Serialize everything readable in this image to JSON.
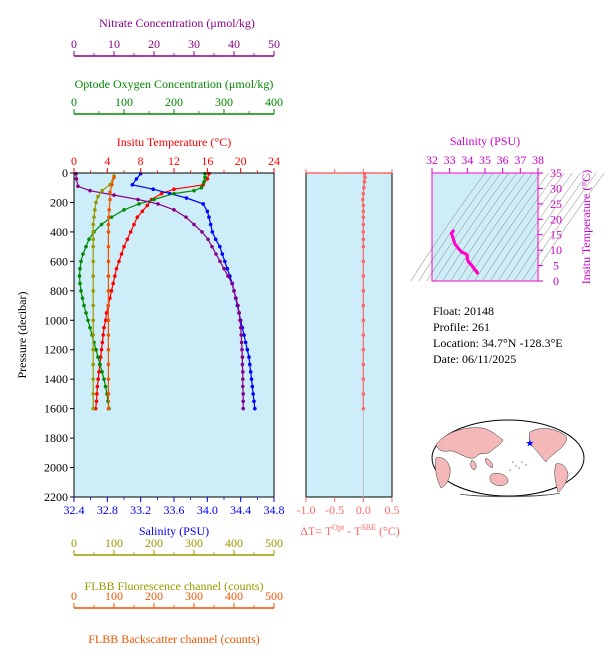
{
  "info": {
    "float": "Float:  20148",
    "profile": "Profile:  261",
    "location_prefix": "Location:  34.7",
    "location_mid": "N  -128.3",
    "location_suffix": "E",
    "date": "Date:  06/11/2025"
  },
  "chart_data": [
    {
      "id": "main-profile",
      "type": "line",
      "ylabel": "Pressure (decibar)",
      "ylim": [
        2200,
        0
      ],
      "yticks": [
        0,
        200,
        400,
        600,
        800,
        1000,
        1200,
        1400,
        1600,
        1800,
        2000,
        2200
      ],
      "axes": {
        "temperature": {
          "title": "Insitu Temperature (",
          "title_end": "C)",
          "lim": [
            0,
            24
          ],
          "ticks": [
            "0",
            "4",
            "8",
            "12",
            "16",
            "20",
            "24"
          ],
          "color": "#ff0000"
        },
        "salinity": {
          "title": "Salinity (PSU)",
          "lim": [
            32.4,
            34.8
          ],
          "ticks": [
            "32.4",
            "32.8",
            "33.2",
            "33.6",
            "34.0",
            "34.4",
            "34.8"
          ],
          "color": "#0000ff"
        },
        "oxygen": {
          "title": "Optode Oxygen Concentration (",
          "title_end": "mol/kg)",
          "lim": [
            0,
            400
          ],
          "ticks": [
            "0",
            "100",
            "200",
            "300",
            "400"
          ],
          "color": "#008800"
        },
        "nitrate": {
          "title": "Nitrate Concentration (",
          "title_end": "mol/kg)",
          "lim": [
            0,
            50
          ],
          "ticks": [
            "0",
            "10",
            "20",
            "30",
            "40",
            "50"
          ],
          "color": "#880088"
        },
        "fluorescence": {
          "title": "FLBB Fluorescence channel (counts)",
          "lim": [
            0,
            500
          ],
          "ticks": [
            "0",
            "100",
            "200",
            "300",
            "400",
            "500"
          ],
          "color": "#999900"
        },
        "backscatter": {
          "title": "FLBB Backscatter channel (counts)",
          "lim": [
            0,
            500
          ],
          "ticks": [
            "0",
            "100",
            "200",
            "300",
            "400",
            "500"
          ],
          "color": "#ee5500"
        }
      },
      "series": [
        {
          "key": "temperature",
          "color": "#ff0000",
          "points": [
            [
              16.2,
              5
            ],
            [
              16.0,
              40
            ],
            [
              15.5,
              80
            ],
            [
              12.0,
              110
            ],
            [
              10.5,
              140
            ],
            [
              9.3,
              180
            ],
            [
              8.8,
              220
            ],
            [
              8.2,
              260
            ],
            [
              7.6,
              300
            ],
            [
              7.2,
              350
            ],
            [
              6.8,
              400
            ],
            [
              6.4,
              450
            ],
            [
              6.0,
              500
            ],
            [
              5.7,
              550
            ],
            [
              5.4,
              600
            ],
            [
              5.1,
              650
            ],
            [
              4.9,
              700
            ],
            [
              4.7,
              750
            ],
            [
              4.5,
              800
            ],
            [
              4.3,
              850
            ],
            [
              4.1,
              900
            ],
            [
              3.9,
              950
            ],
            [
              3.8,
              1000
            ],
            [
              3.6,
              1050
            ],
            [
              3.5,
              1100
            ],
            [
              3.4,
              1150
            ],
            [
              3.3,
              1200
            ],
            [
              3.2,
              1250
            ],
            [
              3.1,
              1300
            ],
            [
              3.0,
              1350
            ],
            [
              2.9,
              1400
            ],
            [
              2.8,
              1450
            ],
            [
              2.75,
              1500
            ],
            [
              2.7,
              1550
            ],
            [
              2.6,
              1600
            ]
          ]
        },
        {
          "key": "salinity",
          "color": "#0000ff",
          "points": [
            [
              33.2,
              5
            ],
            [
              33.15,
              40
            ],
            [
              33.1,
              80
            ],
            [
              33.35,
              110
            ],
            [
              33.55,
              140
            ],
            [
              33.75,
              170
            ],
            [
              33.95,
              210
            ],
            [
              34.0,
              260
            ],
            [
              34.02,
              300
            ],
            [
              34.04,
              350
            ],
            [
              34.06,
              400
            ],
            [
              34.1,
              450
            ],
            [
              34.15,
              500
            ],
            [
              34.18,
              550
            ],
            [
              34.21,
              600
            ],
            [
              34.24,
              650
            ],
            [
              34.27,
              700
            ],
            [
              34.3,
              750
            ],
            [
              34.32,
              800
            ],
            [
              34.34,
              850
            ],
            [
              34.36,
              900
            ],
            [
              34.38,
              950
            ],
            [
              34.4,
              1000
            ],
            [
              34.42,
              1050
            ],
            [
              34.44,
              1100
            ],
            [
              34.46,
              1150
            ],
            [
              34.48,
              1200
            ],
            [
              34.5,
              1250
            ],
            [
              34.51,
              1300
            ],
            [
              34.52,
              1350
            ],
            [
              34.53,
              1400
            ],
            [
              34.54,
              1450
            ],
            [
              34.55,
              1500
            ],
            [
              34.56,
              1550
            ],
            [
              34.57,
              1600
            ]
          ]
        },
        {
          "key": "oxygen",
          "color": "#008800",
          "points": [
            [
              262,
              5
            ],
            [
              262,
              30
            ],
            [
              260,
              60
            ],
            [
              255,
              100
            ],
            [
              240,
              120
            ],
            [
              200,
              140
            ],
            [
              160,
              180
            ],
            [
              130,
              210
            ],
            [
              100,
              250
            ],
            [
              75,
              300
            ],
            [
              55,
              350
            ],
            [
              40,
              400
            ],
            [
              30,
              450
            ],
            [
              24,
              500
            ],
            [
              18,
              550
            ],
            [
              14,
              600
            ],
            [
              12,
              650
            ],
            [
              11,
              700
            ],
            [
              12,
              750
            ],
            [
              14,
              800
            ],
            [
              17,
              850
            ],
            [
              20,
              900
            ],
            [
              24,
              950
            ],
            [
              28,
              1000
            ],
            [
              32,
              1050
            ],
            [
              36,
              1100
            ],
            [
              40,
              1150
            ],
            [
              44,
              1200
            ],
            [
              48,
              1250
            ],
            [
              52,
              1300
            ],
            [
              56,
              1350
            ],
            [
              60,
              1400
            ],
            [
              63,
              1450
            ],
            [
              66,
              1500
            ],
            [
              68,
              1550
            ],
            [
              70,
              1600
            ]
          ]
        },
        {
          "key": "nitrate",
          "color": "#880088",
          "points": [
            [
              0.5,
              5
            ],
            [
              0.6,
              40
            ],
            [
              1.0,
              90
            ],
            [
              4.0,
              120
            ],
            [
              10,
              150
            ],
            [
              16,
              180
            ],
            [
              21,
              210
            ],
            [
              25,
              250
            ],
            [
              28,
              300
            ],
            [
              30,
              350
            ],
            [
              32,
              400
            ],
            [
              33.5,
              450
            ],
            [
              34.5,
              500
            ],
            [
              35.5,
              550
            ],
            [
              36.5,
              600
            ],
            [
              37.5,
              650
            ],
            [
              38.5,
              700
            ],
            [
              39.5,
              750
            ],
            [
              40,
              800
            ],
            [
              40.5,
              850
            ],
            [
              41,
              900
            ],
            [
              41.3,
              950
            ],
            [
              41.5,
              1000
            ],
            [
              41.7,
              1050
            ],
            [
              41.8,
              1100
            ],
            [
              41.9,
              1150
            ],
            [
              42,
              1200
            ],
            [
              42.1,
              1250
            ],
            [
              42.1,
              1300
            ],
            [
              42.2,
              1350
            ],
            [
              42.2,
              1400
            ],
            [
              42.2,
              1450
            ],
            [
              42.3,
              1500
            ],
            [
              42.3,
              1550
            ],
            [
              42.3,
              1600
            ]
          ]
        },
        {
          "key": "fluorescence",
          "color": "#999900",
          "points": [
            [
              100,
              20
            ],
            [
              90,
              80
            ],
            [
              70,
              120
            ],
            [
              60,
              160
            ],
            [
              55,
              200
            ],
            [
              52,
              250
            ],
            [
              50,
              300
            ],
            [
              48,
              350
            ],
            [
              48,
              400
            ],
            [
              48,
              450
            ],
            [
              48,
              500
            ],
            [
              48,
              600
            ],
            [
              48,
              700
            ],
            [
              48,
              800
            ],
            [
              48,
              900
            ],
            [
              48,
              1000
            ],
            [
              48,
              1100
            ],
            [
              48,
              1200
            ],
            [
              48,
              1300
            ],
            [
              48,
              1400
            ],
            [
              48,
              1500
            ],
            [
              48,
              1600
            ]
          ]
        },
        {
          "key": "backscatter",
          "color": "#ee5500",
          "points": [
            [
              100,
              30
            ],
            [
              95,
              80
            ],
            [
              90,
              130
            ],
            [
              90,
              180
            ],
            [
              88,
              250
            ],
            [
              87,
              300
            ],
            [
              86,
              350
            ],
            [
              86,
              400
            ],
            [
              86,
              500
            ],
            [
              86,
              600
            ],
            [
              86,
              700
            ],
            [
              86,
              800
            ],
            [
              86,
              900
            ],
            [
              86,
              1000
            ],
            [
              86,
              1100
            ],
            [
              86,
              1200
            ],
            [
              86,
              1300
            ],
            [
              86,
              1400
            ],
            [
              86,
              1500
            ],
            [
              86,
              1600
            ]
          ]
        }
      ]
    },
    {
      "id": "delta-t",
      "type": "line",
      "xlabel_prefix": "ΔT= T",
      "xlabel_sup1": "Opt",
      "xlabel_mid": " - T",
      "xlabel_sup2": "SBE",
      "xlabel_suffix": " (",
      "xlabel_end": "C)",
      "xlim": [
        -1.0,
        0.5
      ],
      "xticks": [
        "-1.0",
        "-0.5",
        "0.0",
        "0.5"
      ],
      "color": "#ff6666",
      "points": [
        [
          0.02,
          5
        ],
        [
          0.03,
          30
        ],
        [
          0.02,
          60
        ],
        [
          0.01,
          100
        ],
        [
          0.0,
          140
        ],
        [
          -0.01,
          180
        ],
        [
          0.0,
          220
        ],
        [
          0.0,
          260
        ],
        [
          0.0,
          300
        ],
        [
          0.0,
          350
        ],
        [
          0.0,
          400
        ],
        [
          0.0,
          450
        ],
        [
          0.0,
          500
        ],
        [
          0.0,
          600
        ],
        [
          0.0,
          700
        ],
        [
          0.0,
          800
        ],
        [
          0.0,
          900
        ],
        [
          0.0,
          1000
        ],
        [
          0.0,
          1100
        ],
        [
          0.0,
          1200
        ],
        [
          0.0,
          1300
        ],
        [
          0.0,
          1400
        ],
        [
          0.0,
          1500
        ],
        [
          0.0,
          1600
        ]
      ]
    },
    {
      "id": "ts-diagram",
      "type": "line",
      "title": "Salinity (PSU)",
      "ylabel_prefix": "Insitu Temperature (",
      "ylabel_end": "C)",
      "xlim": [
        32,
        38
      ],
      "ylim": [
        0,
        35
      ],
      "xticks": [
        "32",
        "33",
        "34",
        "35",
        "36",
        "37",
        "38"
      ],
      "yticks": [
        "0",
        "5",
        "10",
        "15",
        "20",
        "25",
        "30",
        "35"
      ],
      "color": "#ff00cc",
      "points": [
        [
          33.2,
          16.2
        ],
        [
          33.1,
          15.5
        ],
        [
          33.3,
          12.0
        ],
        [
          33.5,
          10.5
        ],
        [
          33.7,
          9.3
        ],
        [
          33.9,
          8.8
        ],
        [
          34.0,
          8.2
        ],
        [
          34.0,
          7.2
        ],
        [
          34.05,
          6.4
        ],
        [
          34.1,
          6.0
        ],
        [
          34.2,
          5.4
        ],
        [
          34.3,
          4.7
        ],
        [
          34.35,
          4.3
        ],
        [
          34.4,
          3.8
        ],
        [
          34.45,
          3.5
        ],
        [
          34.5,
          3.2
        ],
        [
          34.55,
          2.9
        ],
        [
          34.57,
          2.6
        ]
      ]
    }
  ],
  "map": {
    "float_lat": 34.7,
    "float_lon": -128.3
  }
}
